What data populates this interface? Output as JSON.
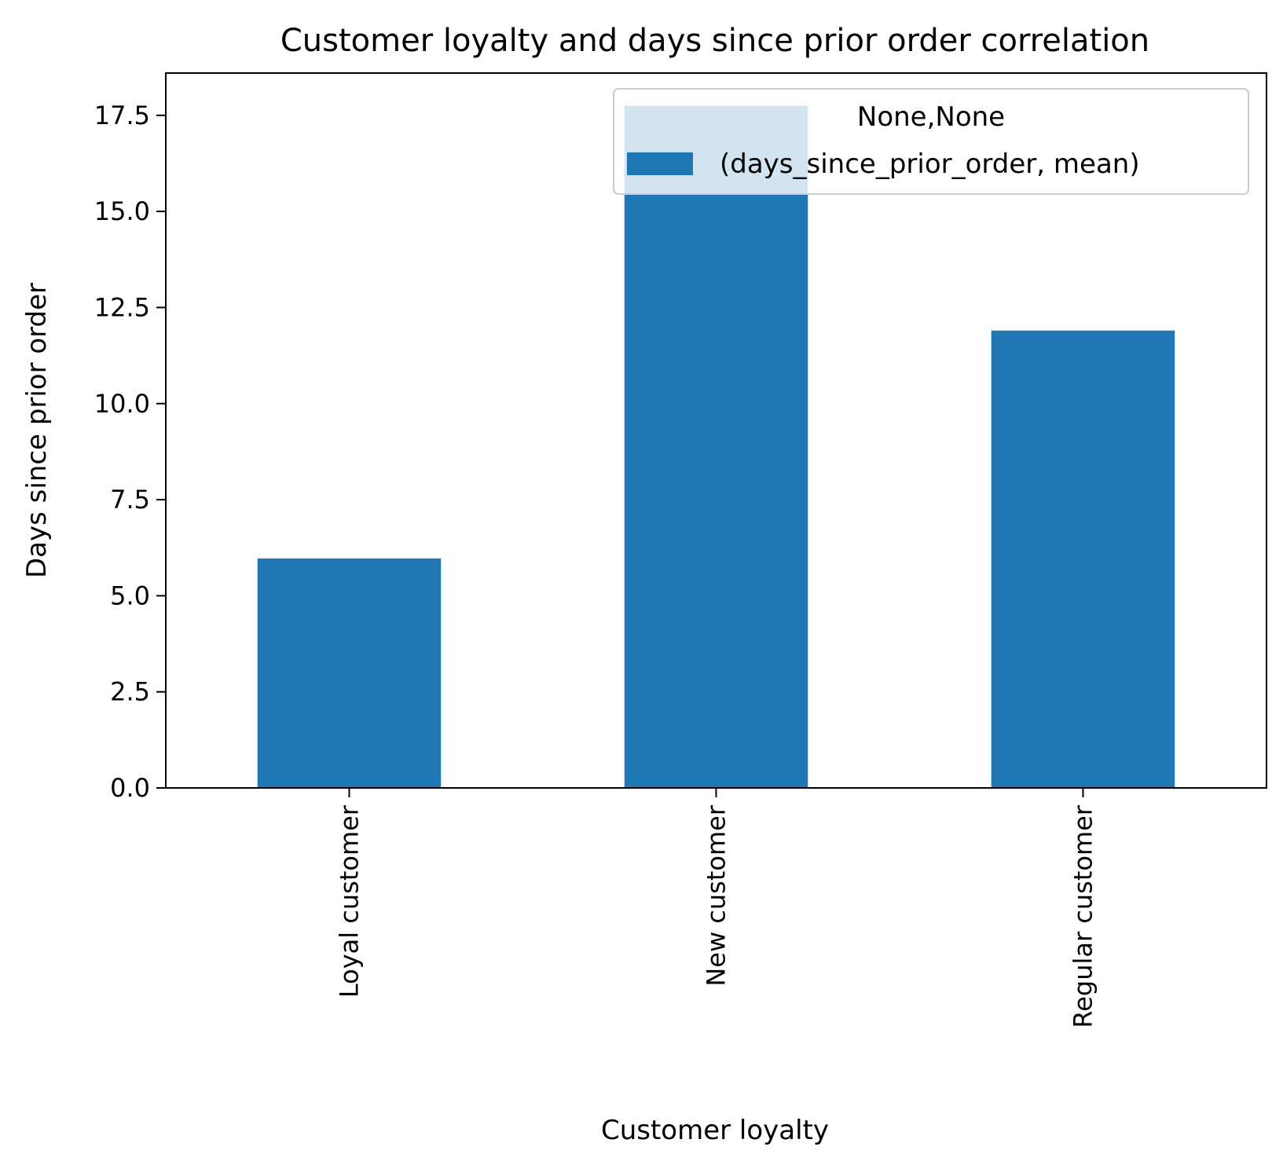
{
  "chart_data": {
    "type": "bar",
    "title": "Customer loyalty and days since prior order correlation",
    "xlabel": "Customer loyalty",
    "ylabel": "Days since prior order",
    "categories": [
      "Loyal customer",
      "New customer",
      "Regular customer"
    ],
    "series": [
      {
        "name": "(days_since_prior_order, mean)",
        "values": [
          5.97,
          17.75,
          11.9
        ],
        "color": "#1f77b4"
      }
    ],
    "legend": {
      "title": "None,None",
      "placement": "top-right"
    },
    "ylim": [
      0,
      18.6
    ],
    "yticks": [
      0.0,
      2.5,
      5.0,
      7.5,
      10.0,
      12.5,
      15.0,
      17.5
    ],
    "grid": false
  }
}
